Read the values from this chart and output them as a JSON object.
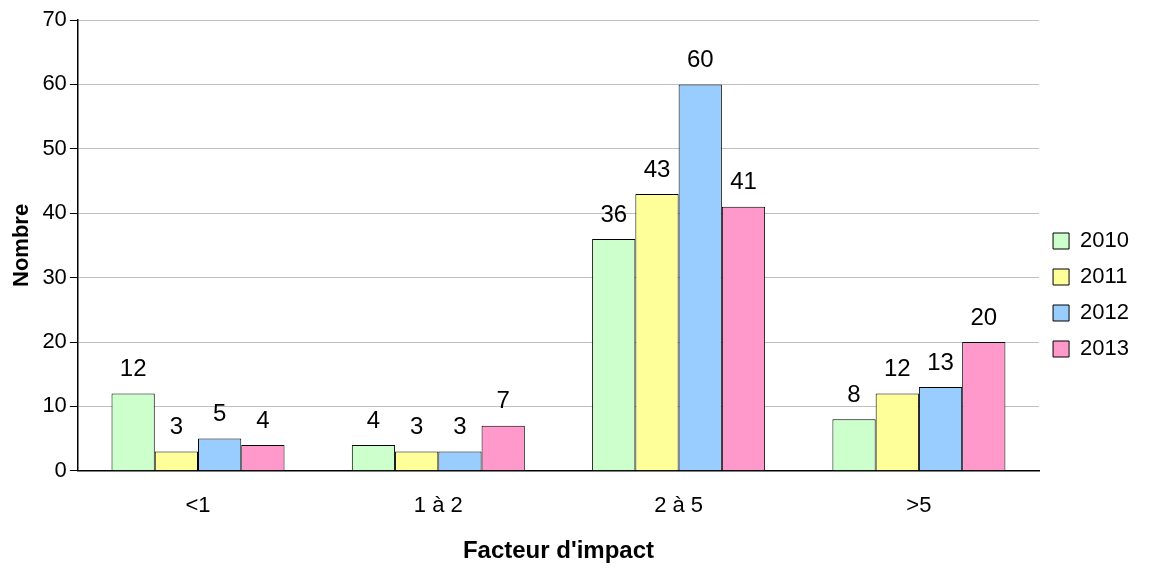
{
  "chart_data": {
    "type": "bar",
    "xlabel": "Facteur d'impact",
    "ylabel": "Nombre",
    "categories": [
      "<1",
      "1 à 2",
      "2 à 5",
      ">5"
    ],
    "series": [
      {
        "name": "2010",
        "color": "#ccffcc",
        "values": [
          12,
          4,
          36,
          8
        ]
      },
      {
        "name": "2011",
        "color": "#ffff99",
        "values": [
          3,
          3,
          43,
          12
        ]
      },
      {
        "name": "2012",
        "color": "#99ccff",
        "values": [
          5,
          3,
          60,
          13
        ]
      },
      {
        "name": "2013",
        "color": "#ff99cc",
        "values": [
          4,
          7,
          41,
          20
        ]
      }
    ],
    "ylim": [
      0,
      70
    ],
    "yticks": [
      0,
      10,
      20,
      30,
      40,
      50,
      60,
      70
    ],
    "grid": "y",
    "legend": "right",
    "data_labels": true
  }
}
